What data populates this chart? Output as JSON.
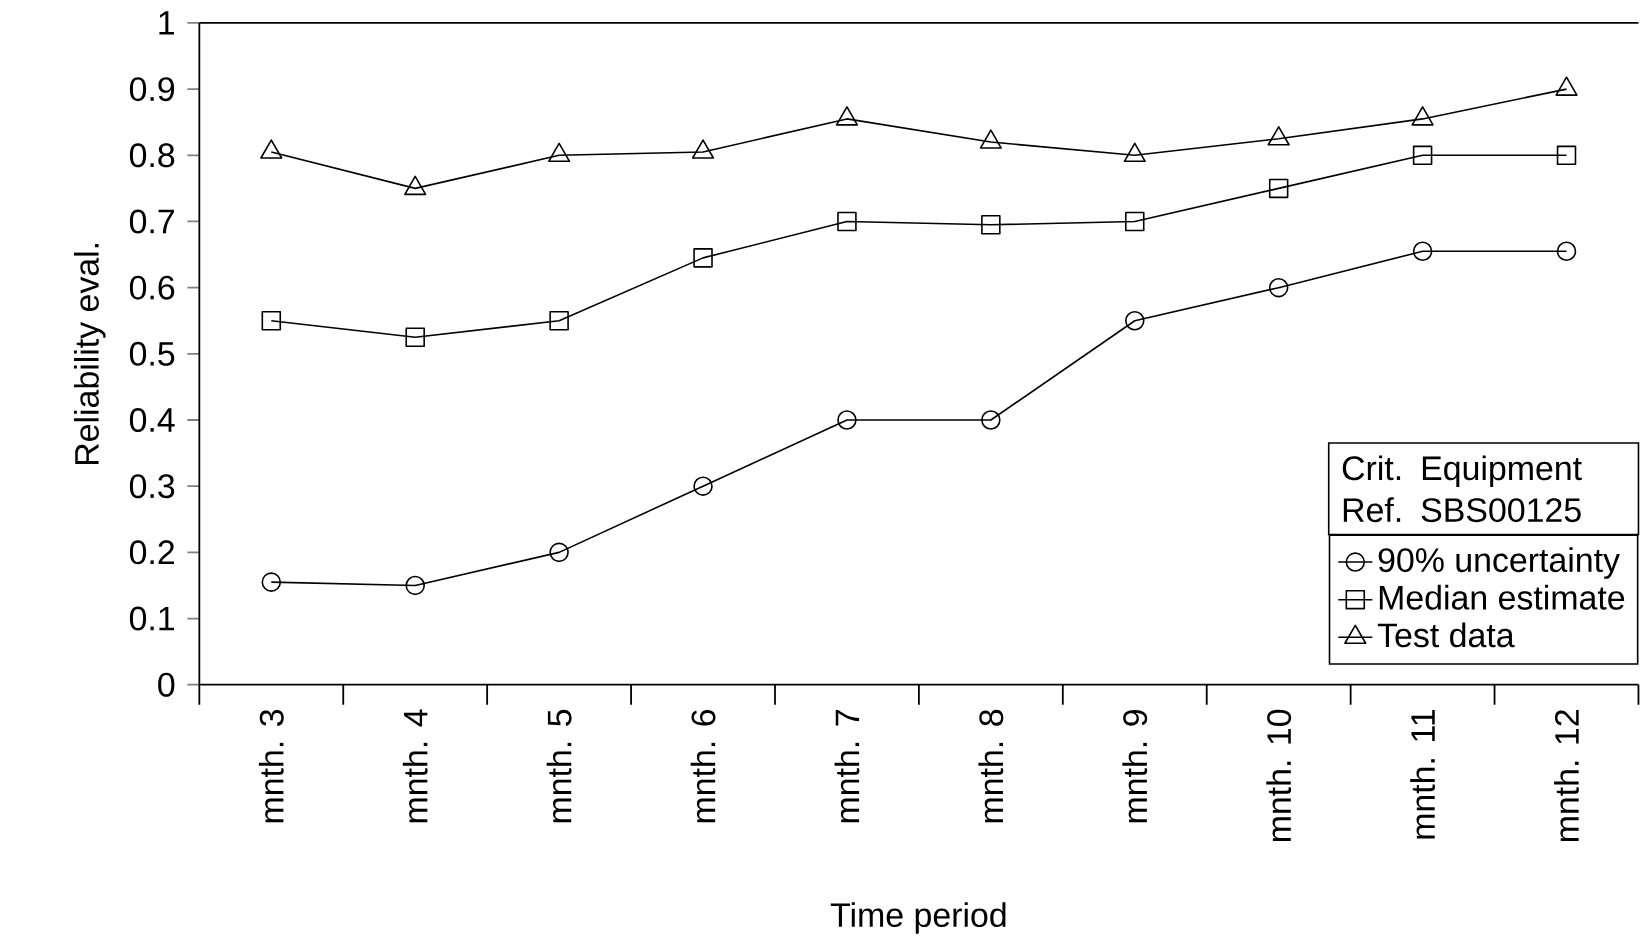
{
  "chart_data": {
    "type": "line",
    "xlabel": "Time period",
    "ylabel": "Reliability eval.",
    "legend_title": "Crit. Equipment Ref.  SBS00125",
    "categories": [
      "mnth. 3",
      "mnth. 4",
      "mnth. 5",
      "mnth. 6",
      "mnth. 7",
      "mnth. 8",
      "mnth. 9",
      "mnth. 10",
      "mnth. 11",
      "mnth. 12"
    ],
    "series": [
      {
        "name": "90% uncertainty",
        "color": "#000000",
        "marker": "circle",
        "values": [
          0.155,
          0.15,
          0.2,
          0.3,
          0.4,
          0.4,
          0.55,
          0.6,
          0.655,
          0.655
        ]
      },
      {
        "name": "Median estimate",
        "color": "#000000",
        "marker": "square",
        "values": [
          0.55,
          0.525,
          0.55,
          0.645,
          0.7,
          0.695,
          0.7,
          0.75,
          0.8,
          0.8
        ]
      },
      {
        "name": "Test data",
        "color": "#000000",
        "marker": "triangle",
        "values": [
          0.805,
          0.75,
          0.8,
          0.805,
          0.855,
          0.82,
          0.8,
          0.825,
          0.855,
          0.9
        ]
      }
    ],
    "ylim": [
      0,
      1
    ],
    "yticks": [
      0,
      0.1,
      0.2,
      0.3,
      0.4,
      0.5,
      0.6,
      0.7,
      0.8,
      0.9,
      1
    ],
    "legend": "bottom right",
    "grid": false,
    "line_style": "solid"
  }
}
